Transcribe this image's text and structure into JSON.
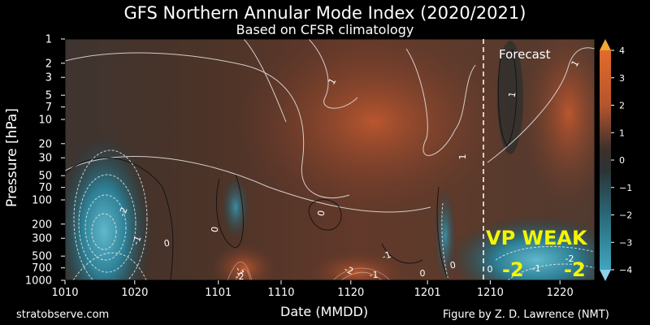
{
  "chart_data": {
    "type": "heatmap",
    "title": "GFS Northern Annular Mode Index (2020/2021)",
    "subtitle": "Based on CFSR climatology",
    "xlabel": "Date (MMDD)",
    "ylabel": "Pressure [hPa]",
    "x_ticks": [
      "1010",
      "1020",
      "1101",
      "1110",
      "1120",
      "1201",
      "1210",
      "1220"
    ],
    "y_ticks": [
      "1",
      "2",
      "3",
      "5",
      "7",
      "10",
      "20",
      "30",
      "50",
      "70",
      "100",
      "200",
      "300",
      "500",
      "700",
      "1000"
    ],
    "y_scale": "log",
    "colorbar": {
      "ticks": [
        "4",
        "3",
        "2",
        "1",
        "0",
        "−1",
        "−2",
        "−3",
        "−4"
      ],
      "range": [
        -4,
        4
      ],
      "colors": {
        "neg": "#3aa0b8",
        "zero": "#2a2a2a",
        "pos": "#e0632c",
        "extreme_pos": "#f0b030",
        "extreme_neg": "#8fd8f0"
      }
    },
    "contour_labels": [
      "1",
      "0",
      "1",
      "-2",
      "-1",
      "0",
      "0",
      "-1",
      "-2",
      "0",
      "-1",
      "-2",
      "-1",
      "0",
      "1",
      "0",
      "-1",
      "-2",
      "1"
    ],
    "forecast_label": "Forecast",
    "annotations": {
      "vp_text": "VP WEAK",
      "neg_label_1": "-2",
      "neg_label_2": "-2",
      "annotation_color": "#f5f500"
    },
    "credits": {
      "left": "stratobserve.com",
      "right": "Figure by Z. D. Lawrence (NMT)"
    }
  }
}
